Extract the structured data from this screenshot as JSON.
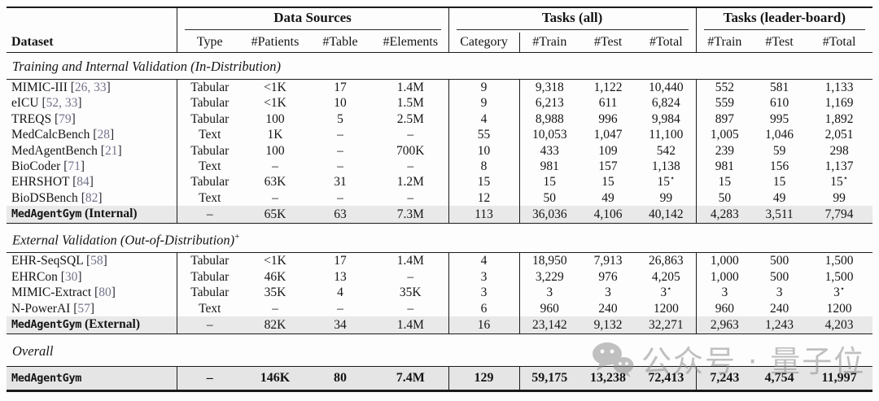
{
  "table": {
    "header": {
      "dataset": "Dataset",
      "groups": [
        {
          "label": "Data Sources",
          "cols": [
            "Type",
            "#Patients",
            "#Table",
            "#Elements"
          ]
        },
        {
          "label": "Tasks (all)",
          "cols": [
            "Category",
            "#Train",
            "#Test",
            "#Total"
          ]
        },
        {
          "label": "Tasks (leader-board)",
          "cols": [
            "#Train",
            "#Test",
            "#Total"
          ]
        }
      ]
    },
    "sections": [
      {
        "title": "Training and Internal Validation (In-Distribution)",
        "superscript": "",
        "rows": [
          {
            "name": "MIMIC-III",
            "cite": "26, 33",
            "cells": [
              "Tabular",
              "<1K",
              "17",
              "1.4M",
              "9",
              "9,318",
              "1,122",
              "10,440",
              "552",
              "581",
              "1,133"
            ]
          },
          {
            "name": "eICU",
            "cite": "52, 33",
            "cells": [
              "Tabular",
              "<1K",
              "10",
              "1.5M",
              "9",
              "6,213",
              "611",
              "6,824",
              "559",
              "610",
              "1,169"
            ]
          },
          {
            "name": "TREQS",
            "cite": "79",
            "cells": [
              "Tabular",
              "100",
              "5",
              "2.5M",
              "4",
              "8,988",
              "996",
              "9,984",
              "897",
              "995",
              "1,892"
            ]
          },
          {
            "name": "MedCalcBench",
            "cite": "28",
            "cells": [
              "Text",
              "1K",
              "–",
              "–",
              "55",
              "10,053",
              "1,047",
              "11,100",
              "1,005",
              "1,046",
              "2,051"
            ]
          },
          {
            "name": "MedAgentBench",
            "cite": "21",
            "cells": [
              "Tabular",
              "100",
              "–",
              "700K",
              "10",
              "433",
              "109",
              "542",
              "239",
              "59",
              "298"
            ]
          },
          {
            "name": "BioCoder",
            "cite": "71",
            "cells": [
              "Text",
              "–",
              "–",
              "–",
              "8",
              "981",
              "157",
              "1,138",
              "981",
              "156",
              "1,137"
            ]
          },
          {
            "name": "EHRSHOT",
            "cite": "84",
            "cells": [
              "Tabular",
              "63K",
              "31",
              "1.2M",
              "15",
              "15",
              "15",
              "15*",
              "15",
              "15",
              "15*"
            ]
          },
          {
            "name": "BioDSBench",
            "cite": "82",
            "cells": [
              "Text",
              "–",
              "–",
              "–",
              "12",
              "50",
              "49",
              "99",
              "50",
              "49",
              "99"
            ]
          },
          {
            "name": "MedAgentGym",
            "suffix": "(Internal)",
            "mono": true,
            "highlight": true,
            "cells": [
              "–",
              "65K",
              "63",
              "7.3M",
              "113",
              "36,036",
              "4,106",
              "40,142",
              "4,283",
              "3,511",
              "7,794"
            ]
          }
        ]
      },
      {
        "title": "External Validation (Out-of-Distribution)",
        "superscript": "+",
        "rows": [
          {
            "name": "EHR-SeqSQL",
            "cite": "58",
            "cells": [
              "Tabular",
              "<1K",
              "17",
              "1.4M",
              "4",
              "18,950",
              "7,913",
              "26,863",
              "1,000",
              "500",
              "1,500"
            ]
          },
          {
            "name": "EHRCon",
            "cite": "30",
            "cells": [
              "Tabular",
              "46K",
              "13",
              "–",
              "3",
              "3,229",
              "976",
              "4,205",
              "1,000",
              "500",
              "1,500"
            ]
          },
          {
            "name": "MIMIC-Extract",
            "cite": "80",
            "cells": [
              "Tabular",
              "35K",
              "4",
              "35K",
              "3",
              "3",
              "3",
              "3*",
              "3",
              "3",
              "3*"
            ]
          },
          {
            "name": "N-PowerAI",
            "cite": "57",
            "cells": [
              "Text",
              "–",
              "–",
              "–",
              "6",
              "960",
              "240",
              "1200",
              "960",
              "240",
              "1200"
            ]
          },
          {
            "name": "MedAgentGym",
            "suffix": "(External)",
            "mono": true,
            "highlight": true,
            "cells": [
              "–",
              "82K",
              "34",
              "1.4M",
              "16",
              "23,142",
              "9,132",
              "32,271",
              "2,963",
              "1,243",
              "4,203"
            ]
          }
        ]
      },
      {
        "title": "Overall",
        "superscript": "",
        "rows": [
          {
            "name": "MedAgentGym",
            "mono": true,
            "total": true,
            "cells": [
              "–",
              "146K",
              "80",
              "7.4M",
              "129",
              "59,175",
              "13,238",
              "72,413",
              "7,243",
              "4,754",
              "11,997"
            ]
          }
        ]
      }
    ]
  },
  "watermark": {
    "icon": "wechat-icon",
    "text": "公众号 · 量子位"
  },
  "colors": {
    "citation": "#73738c",
    "highlight_row": "#e9e9e9",
    "total_row": "#e5e5e6",
    "rule": "#1b1b1b",
    "watermark_gray": "#8f8f8f"
  }
}
